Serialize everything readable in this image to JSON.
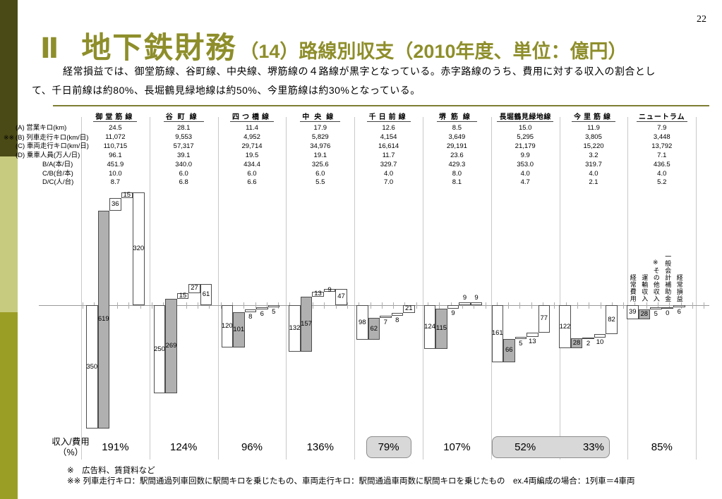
{
  "page_number": "22",
  "header": {
    "section_no": "Ⅱ",
    "title": "地下鉄財務",
    "subtitle": "（14）路線別収支（2010年度、単位：億円）"
  },
  "intro": {
    "line1": "経常損益では、御堂筋線、谷町線、中央線、堺筋線の４路線が黒字となっている。赤字路線のうち、費用に対する収入の割合とし",
    "line2": "て、千日前線は約80%、長堀鶴見緑地線は約50%、今里筋線は約30%となっている。"
  },
  "stats_table": {
    "rows": [
      {
        "note": "",
        "label": "(A) 営業キロ(km)",
        "indent": false,
        "values": [
          "24.5",
          "28.1",
          "11.4",
          "17.9",
          "12.6",
          "8.5",
          "15.0",
          "11.9",
          "7.9"
        ]
      },
      {
        "note": "※※",
        "label": "(B) 列車走行キロ(km/日)",
        "indent": false,
        "values": [
          "11,072",
          "9,553",
          "4,952",
          "5,829",
          "4,154",
          "3,649",
          "5,295",
          "3,805",
          "3,448"
        ]
      },
      {
        "note": "",
        "label": "(C) 車両走行キロ(km/日)",
        "indent": false,
        "values": [
          "110,715",
          "57,317",
          "29,714",
          "34,976",
          "16,614",
          "29,191",
          "21,179",
          "15,220",
          "13,792"
        ]
      },
      {
        "note": "",
        "label": "(D) 乗車人員(万人/日)",
        "indent": false,
        "values": [
          "96.1",
          "39.1",
          "19.5",
          "19.1",
          "11.7",
          "23.6",
          "9.9",
          "3.2",
          "7.1"
        ]
      },
      {
        "note": "",
        "label": "B/A(本/日)",
        "indent": true,
        "values": [
          "451.9",
          "340.0",
          "434.4",
          "325.6",
          "329.7",
          "429.3",
          "353.0",
          "319.7",
          "436.5"
        ]
      },
      {
        "note": "",
        "label": "C/B(台/本)",
        "indent": true,
        "values": [
          "10.0",
          "6.0",
          "6.0",
          "6.0",
          "4.0",
          "8.0",
          "4.0",
          "4.0",
          "4.0"
        ]
      },
      {
        "note": "",
        "label": "D/C(人/台)",
        "indent": true,
        "values": [
          "8.7",
          "6.8",
          "6.6",
          "5.5",
          "7.0",
          "8.1",
          "4.7",
          "2.1",
          "5.2"
        ]
      }
    ]
  },
  "chart_data": {
    "type": "bar",
    "subtype": "waterfall",
    "unit": "億円",
    "grid": false,
    "categories": [
      "御堂筋線",
      "谷町線",
      "四つ橋線",
      "中央線",
      "千日前線",
      "堺筋線",
      "長堀鶴見緑地線",
      "今里筋線",
      "ニュートラム"
    ],
    "series_labels": [
      "経常費用",
      "運輸収入",
      "※その他収入",
      "一般会計補助金",
      "経常損益"
    ],
    "columns": [
      {
        "line": "御堂筋線",
        "bars": [
          {
            "label": "350",
            "from": 0,
            "to": -350,
            "pos": "inside",
            "gray": false
          },
          {
            "label": "619",
            "from": -350,
            "to": 269,
            "pos": "inside",
            "gray": true
          },
          {
            "label": "36",
            "from": 269,
            "to": 305,
            "pos": "inside",
            "gray": false
          },
          {
            "label": "15",
            "from": 305,
            "to": 320,
            "pos": "inside",
            "gray": false
          },
          {
            "label": "320",
            "from": 0,
            "to": 320,
            "pos": "inside",
            "gray": false
          }
        ]
      },
      {
        "line": "谷町線",
        "bars": [
          {
            "label": "250",
            "from": 0,
            "to": -250,
            "pos": "inside",
            "gray": false
          },
          {
            "label": "269",
            "from": -250,
            "to": 19,
            "pos": "inside",
            "gray": true
          },
          {
            "label": "15",
            "from": 19,
            "to": 34,
            "pos": "inside",
            "gray": false
          },
          {
            "label": "27",
            "from": 34,
            "to": 61,
            "pos": "inside",
            "gray": false
          },
          {
            "label": "61",
            "from": 0,
            "to": 61,
            "pos": "inside",
            "gray": false
          }
        ]
      },
      {
        "line": "四つ橋線",
        "bars": [
          {
            "label": "120",
            "from": 0,
            "to": -120,
            "pos": "inside",
            "gray": false
          },
          {
            "label": "101",
            "from": -120,
            "to": -19,
            "pos": "inside",
            "gray": true
          },
          {
            "label": "8",
            "from": -19,
            "to": -11,
            "pos": "below",
            "gray": false
          },
          {
            "label": "6",
            "from": -11,
            "to": -5,
            "pos": "below",
            "gray": false
          },
          {
            "label": "5",
            "from": -5,
            "to": 0,
            "pos": "below",
            "gray": false
          }
        ]
      },
      {
        "line": "中央線",
        "bars": [
          {
            "label": "132",
            "from": 0,
            "to": -132,
            "pos": "inside",
            "gray": false
          },
          {
            "label": "157",
            "from": -132,
            "to": 25,
            "pos": "inside",
            "gray": true
          },
          {
            "label": "13",
            "from": 25,
            "to": 38,
            "pos": "inside",
            "gray": false
          },
          {
            "label": "9",
            "from": 38,
            "to": 47,
            "pos": "inside",
            "gray": false
          },
          {
            "label": "47",
            "from": 0,
            "to": 47,
            "pos": "inside",
            "gray": false
          }
        ]
      },
      {
        "line": "千日前線",
        "bars": [
          {
            "label": "98",
            "from": 0,
            "to": -98,
            "pos": "inside",
            "gray": false
          },
          {
            "label": "62",
            "from": -98,
            "to": -36,
            "pos": "inside",
            "gray": true
          },
          {
            "label": "7",
            "from": -36,
            "to": -29,
            "pos": "below",
            "gray": false
          },
          {
            "label": "8",
            "from": -29,
            "to": -21,
            "pos": "below",
            "gray": false
          },
          {
            "label": "21",
            "from": -21,
            "to": 0,
            "pos": "inside",
            "gray": false
          }
        ]
      },
      {
        "line": "堺筋線",
        "bars": [
          {
            "label": "124",
            "from": 0,
            "to": -124,
            "pos": "inside",
            "gray": false
          },
          {
            "label": "115",
            "from": -124,
            "to": -9,
            "pos": "inside",
            "gray": true
          },
          {
            "label": "9",
            "from": -9,
            "to": 0,
            "pos": "below",
            "gray": false
          },
          {
            "label": "9",
            "from": 0,
            "to": 9,
            "pos": "above",
            "gray": false
          },
          {
            "label": "9",
            "from": 0,
            "to": 9,
            "pos": "above",
            "gray": false
          }
        ]
      },
      {
        "line": "長堀鶴見緑地線",
        "bars": [
          {
            "label": "161",
            "from": 0,
            "to": -161,
            "pos": "inside",
            "gray": false
          },
          {
            "label": "66",
            "from": -161,
            "to": -95,
            "pos": "inside",
            "gray": true
          },
          {
            "label": "5",
            "from": -95,
            "to": -90,
            "pos": "below",
            "gray": false
          },
          {
            "label": "13",
            "from": -90,
            "to": -77,
            "pos": "below",
            "gray": false
          },
          {
            "label": "77",
            "from": -77,
            "to": 0,
            "pos": "inside",
            "gray": false
          }
        ]
      },
      {
        "line": "今里筋線",
        "bars": [
          {
            "label": "122",
            "from": 0,
            "to": -122,
            "pos": "inside",
            "gray": false
          },
          {
            "label": "28",
            "from": -122,
            "to": -94,
            "pos": "inside",
            "gray": true
          },
          {
            "label": "2",
            "from": -94,
            "to": -92,
            "pos": "below",
            "gray": false
          },
          {
            "label": "10",
            "from": -92,
            "to": -82,
            "pos": "below",
            "gray": false
          },
          {
            "label": "82",
            "from": -82,
            "to": 0,
            "pos": "inside",
            "gray": false
          }
        ]
      },
      {
        "line": "ニュートラム",
        "bars": [
          {
            "label": "39",
            "from": 0,
            "to": -39,
            "pos": "inside",
            "gray": false
          },
          {
            "label": "28",
            "from": -39,
            "to": -11,
            "pos": "inside",
            "gray": true
          },
          {
            "label": "5",
            "from": -11,
            "to": -6,
            "pos": "below",
            "gray": false
          },
          {
            "label": "0",
            "from": -6,
            "to": -6,
            "pos": "below",
            "gray": false
          },
          {
            "label": "6",
            "from": -6,
            "to": 0,
            "pos": "below",
            "gray": false
          }
        ]
      }
    ]
  },
  "ratio_row": {
    "label_line1": "収入/費用",
    "label_line2": "（%）",
    "values": [
      "191%",
      "124%",
      "96%",
      "136%",
      "79%",
      "107%",
      "52%",
      "33%",
      "85%"
    ],
    "highlight_single": [
      4
    ],
    "highlight_joint": [
      6,
      7
    ]
  },
  "footnotes": {
    "note1": "※　広告料、賃貸料など",
    "note2": "※※ 列車走行キロ：駅間通過列車回数に駅間キロを乗じたもの、車両走行キロ：駅間通過車両数に駅間キロを乗じたもの　ex.4両編成の場合：1列車＝4車両"
  },
  "colors": {
    "accent_olive": "#8e8e2b",
    "rule_olive": "#7e7e33",
    "sidebar_top": "#4a4a16",
    "sidebar_middle": "#c7cb80",
    "sidebar_bottom": "#9b9e24",
    "bar_gray": "#b0b0b0",
    "highlight_fill": "#d8d8d8"
  }
}
